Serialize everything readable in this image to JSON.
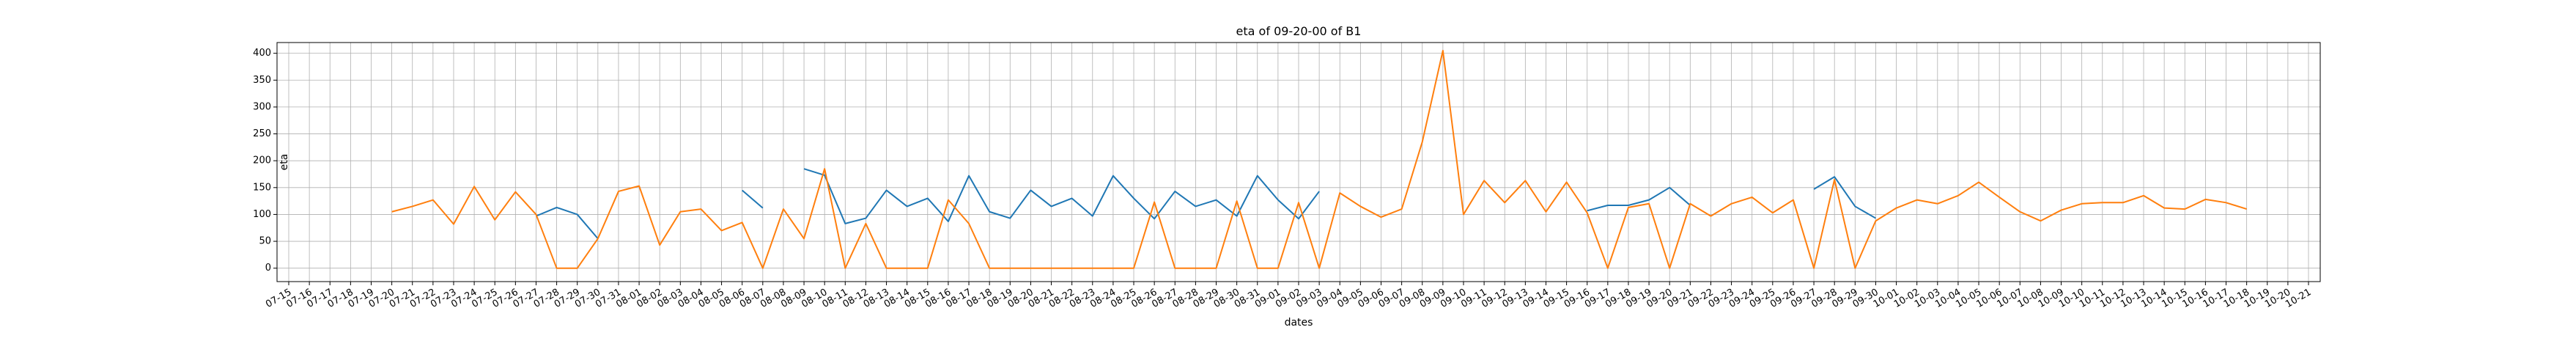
{
  "chart_data": {
    "type": "line",
    "title": "eta of 09-20-00 of B1",
    "xlabel": "dates",
    "ylabel": "eta",
    "ylim": [
      -25,
      420
    ],
    "yticks": [
      0,
      50,
      100,
      150,
      200,
      250,
      300,
      350,
      400
    ],
    "grid": true,
    "legend": "none",
    "categories": [
      "07-15",
      "07-16",
      "07-17",
      "07-18",
      "07-19",
      "07-20",
      "07-21",
      "07-22",
      "07-23",
      "07-24",
      "07-25",
      "07-26",
      "07-27",
      "07-28",
      "07-29",
      "07-30",
      "07-31",
      "08-01",
      "08-02",
      "08-03",
      "08-04",
      "08-05",
      "08-06",
      "08-07",
      "08-08",
      "08-09",
      "08-10",
      "08-11",
      "08-12",
      "08-13",
      "08-14",
      "08-15",
      "08-16",
      "08-17",
      "08-18",
      "08-19",
      "08-20",
      "08-21",
      "08-22",
      "08-23",
      "08-24",
      "08-25",
      "08-26",
      "08-27",
      "08-28",
      "08-29",
      "08-30",
      "08-31",
      "09-01",
      "09-02",
      "09-03",
      "09-04",
      "09-05",
      "09-06",
      "09-07",
      "09-08",
      "09-09",
      "09-10",
      "09-11",
      "09-12",
      "09-13",
      "09-14",
      "09-15",
      "09-16",
      "09-17",
      "09-18",
      "09-19",
      "09-20",
      "09-21",
      "09-22",
      "09-23",
      "09-24",
      "09-25",
      "09-26",
      "09-27",
      "09-28",
      "09-29",
      "09-30",
      "10-01",
      "10-02",
      "10-03",
      "10-04",
      "10-05",
      "10-06",
      "10-07",
      "10-08",
      "10-09",
      "10-10",
      "10-11",
      "10-12",
      "10-13",
      "10-14",
      "10-15",
      "10-16",
      "10-17",
      "10-18",
      "10-19",
      "10-20",
      "10-21"
    ],
    "series": [
      {
        "color": "#1f77b4",
        "values": [
          null,
          null,
          null,
          null,
          null,
          null,
          null,
          null,
          null,
          null,
          null,
          null,
          97,
          113,
          100,
          55,
          null,
          null,
          null,
          null,
          null,
          null,
          145,
          112,
          null,
          185,
          173,
          83,
          93,
          145,
          115,
          130,
          87,
          172,
          105,
          93,
          145,
          115,
          130,
          97,
          172,
          130,
          92,
          143,
          115,
          127,
          97,
          172,
          127,
          92,
          143,
          null,
          null,
          null,
          null,
          null,
          null,
          null,
          null,
          null,
          null,
          null,
          null,
          107,
          117,
          117,
          127,
          150,
          117,
          null,
          null,
          null,
          null,
          null,
          147,
          170,
          115,
          93,
          null,
          null,
          null,
          null,
          null,
          null,
          null,
          null,
          null,
          null,
          null,
          null,
          null,
          null,
          null,
          null,
          null,
          null,
          null,
          null,
          null
        ]
      },
      {
        "color": "#ff7f0e",
        "values": [
          null,
          null,
          null,
          null,
          null,
          105,
          115,
          127,
          82,
          152,
          90,
          142,
          100,
          0,
          0,
          55,
          143,
          153,
          43,
          105,
          110,
          70,
          85,
          0,
          110,
          55,
          185,
          0,
          83,
          0,
          0,
          0,
          127,
          83,
          0,
          0,
          0,
          0,
          0,
          0,
          0,
          0,
          123,
          0,
          0,
          0,
          125,
          0,
          0,
          122,
          0,
          140,
          115,
          95,
          110,
          235,
          405,
          100,
          163,
          122,
          163,
          105,
          160,
          103,
          0,
          113,
          120,
          0,
          120,
          97,
          120,
          132,
          103,
          127,
          0,
          165,
          0,
          88,
          112,
          127,
          120,
          135,
          160,
          132,
          105,
          88,
          108,
          120,
          122,
          122,
          135,
          112,
          110,
          128,
          122,
          110,
          null,
          null,
          null
        ]
      }
    ]
  }
}
